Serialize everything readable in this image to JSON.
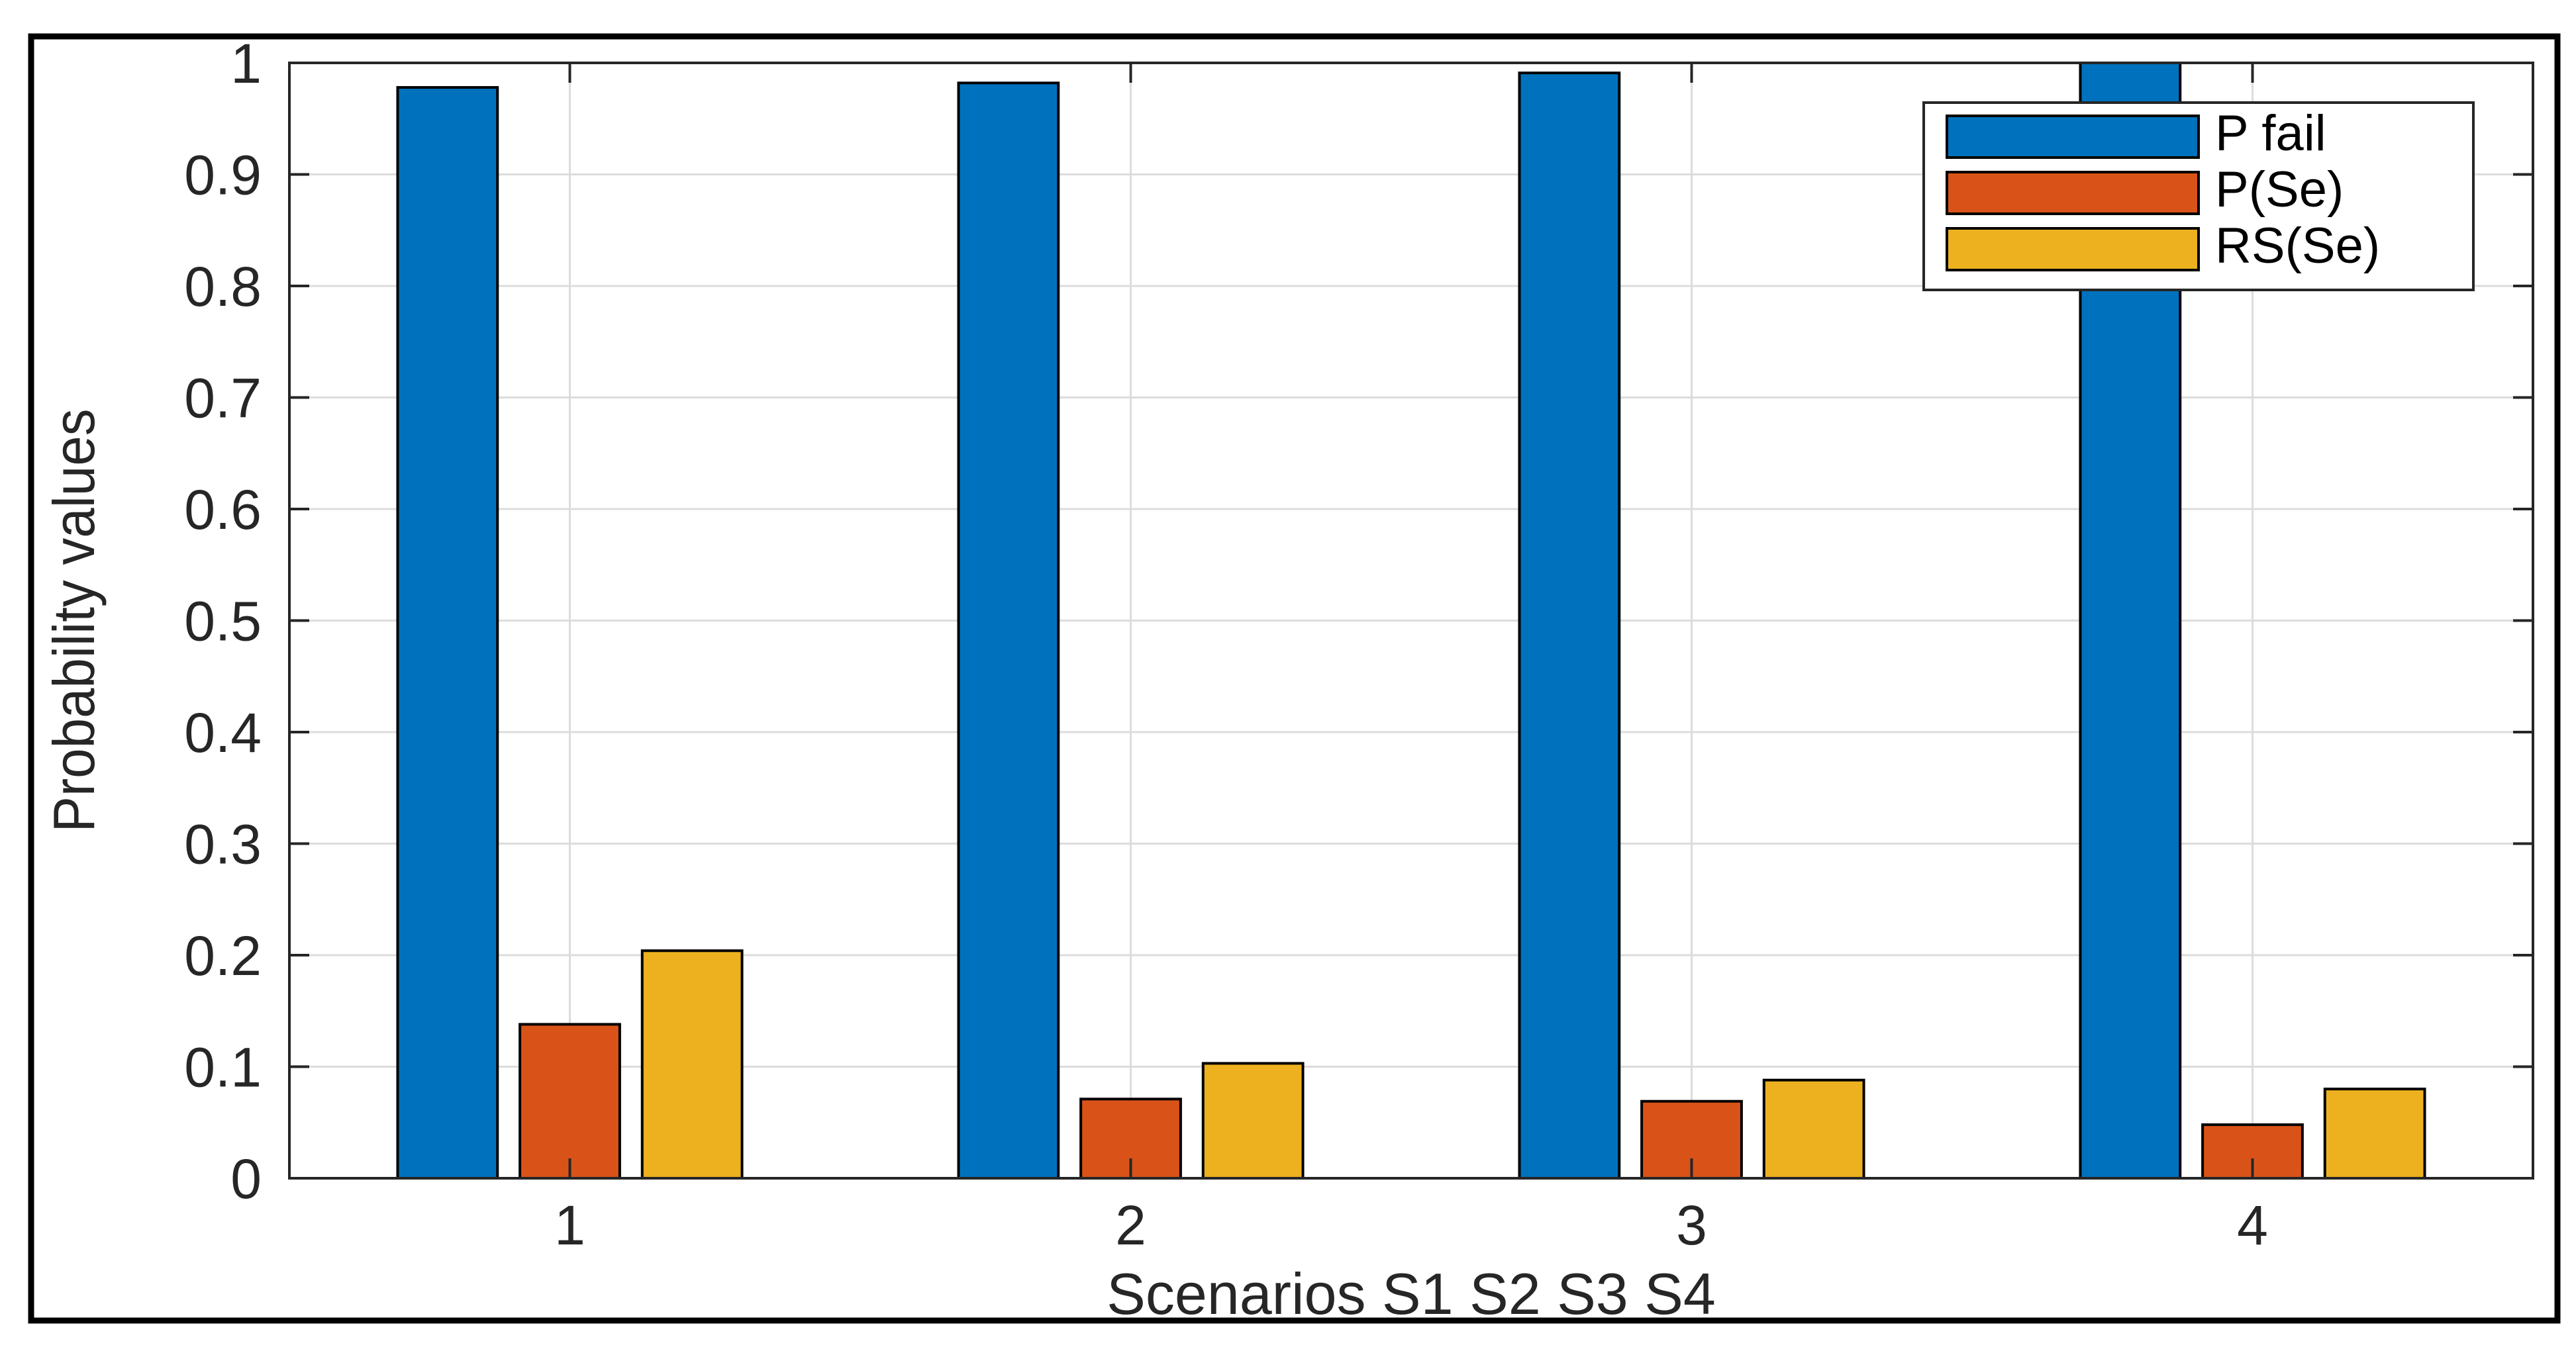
{
  "chart_data": {
    "type": "bar",
    "categories": [
      "1",
      "2",
      "3",
      "4"
    ],
    "series": [
      {
        "name": "P fail",
        "color": "#0072BD",
        "values": [
          0.978,
          0.982,
          0.991,
          1.0
        ]
      },
      {
        "name": "P(Se)",
        "color": "#D95319",
        "values": [
          0.138,
          0.071,
          0.069,
          0.048
        ]
      },
      {
        "name": "RS(Se)",
        "color": "#EDB120",
        "values": [
          0.204,
          0.103,
          0.088,
          0.08
        ]
      }
    ],
    "title": "",
    "xlabel": "Scenarios S1 S2 S3 S4",
    "ylabel": "Probability values",
    "ylim": [
      0,
      1
    ],
    "yticks": [
      "0",
      "0.1",
      "0.2",
      "0.3",
      "0.4",
      "0.5",
      "0.6",
      "0.7",
      "0.8",
      "0.9",
      "1"
    ],
    "grid": true,
    "legend_position": "top-right"
  }
}
